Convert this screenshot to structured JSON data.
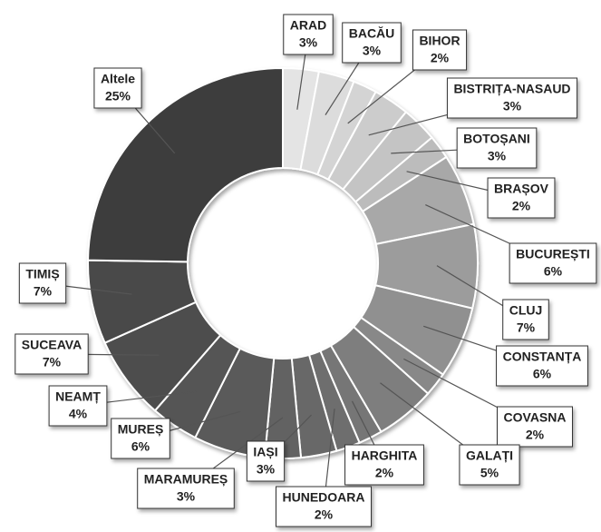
{
  "chart_data": {
    "type": "donut",
    "categories": [
      "ARAD",
      "BACĂU",
      "BIHOR",
      "BISTRIȚA-NASAUD",
      "BOTOȘANI",
      "BRAȘOV",
      "BUCUREȘTI",
      "CLUJ",
      "CONSTANȚA",
      "COVASNA",
      "GALAȚI",
      "HARGHITA",
      "HUNEDOARA",
      "IAȘI",
      "MARAMUREȘ",
      "MUREȘ",
      "NEAMȚ",
      "SUCEAVA",
      "TIMIȘ",
      "Altele"
    ],
    "values": [
      3,
      3,
      2,
      3,
      3,
      2,
      6,
      7,
      6,
      2,
      5,
      2,
      2,
      3,
      3,
      6,
      4,
      7,
      7,
      25
    ],
    "value_labels": [
      "3%",
      "3%",
      "2%",
      "3%",
      "3%",
      "2%",
      "6%",
      "7%",
      "6%",
      "2%",
      "5%",
      "2%",
      "2%",
      "3%",
      "3%",
      "6%",
      "4%",
      "7%",
      "7%",
      "25%"
    ],
    "colors": [
      "#e4e4e4",
      "#dcdcdc",
      "#d4d4d4",
      "#cccccc",
      "#c4c4c4",
      "#bcbcbc",
      "#a8a8a8",
      "#9c9c9c",
      "#909090",
      "#888888",
      "#7e7e7e",
      "#767676",
      "#6e6e6e",
      "#686868",
      "#626262",
      "#5a5a5a",
      "#545454",
      "#4e4e4e",
      "#484848",
      "#3c3c3c"
    ]
  }
}
